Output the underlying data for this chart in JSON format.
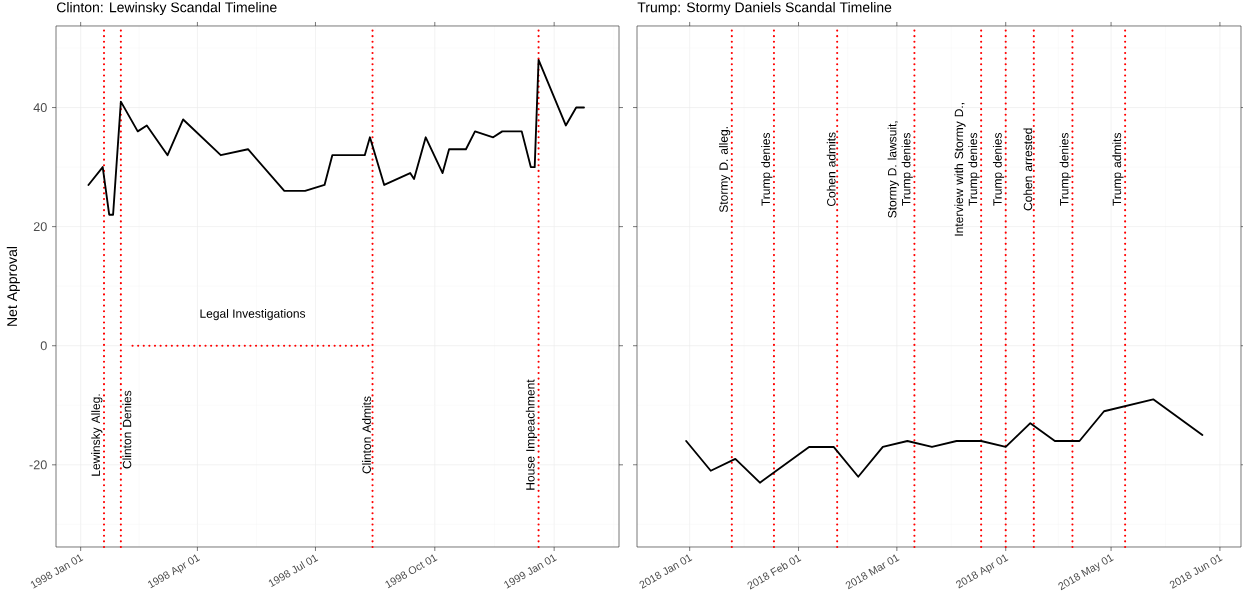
{
  "chart_data": [
    {
      "type": "line",
      "title": "Clinton: Lewinsky Scandal Timeline",
      "ylabel": "Net Approval",
      "xlim": [
        "1997-12-13",
        "1999-02-20"
      ],
      "ylim": [
        -33.8,
        53.7
      ],
      "xticks": [
        {
          "value": "1998-01-01",
          "label": "1998 Jan 01"
        },
        {
          "value": "1998-04-01",
          "label": "1998 Apr 01"
        },
        {
          "value": "1998-07-01",
          "label": "1998 Jul 01"
        },
        {
          "value": "1998-10-01",
          "label": "1998 Oct 01"
        },
        {
          "value": "1999-01-01",
          "label": "1999 Jan 01"
        }
      ],
      "yticks": [
        -20,
        0,
        20,
        40
      ],
      "grid": true,
      "series": [
        {
          "color": "#000000",
          "line_style": "solid",
          "x": [
            "1998-01-07",
            "1998-01-18",
            "1998-01-23",
            "1998-01-26",
            "1998-02-01",
            "1998-02-14",
            "1998-02-21",
            "1998-03-09",
            "1998-03-21",
            "1998-04-19",
            "1998-05-10",
            "1998-06-07",
            "1998-06-23",
            "1998-07-08",
            "1998-07-14",
            "1998-08-08",
            "1998-08-12",
            "1998-08-23",
            "1998-09-12",
            "1998-09-15",
            "1998-09-24",
            "1998-10-07",
            "1998-10-12",
            "1998-10-25",
            "1998-11-01",
            "1998-11-15",
            "1998-11-22",
            "1998-12-07",
            "1998-12-14",
            "1998-12-17",
            "1998-12-20",
            "1999-01-10",
            "1999-01-18",
            "1999-01-24"
          ],
          "values": [
            27,
            30,
            22,
            22,
            41,
            36,
            37,
            32,
            38,
            32,
            33,
            26,
            26,
            27,
            32,
            32,
            35,
            27,
            29,
            28,
            35,
            29,
            33,
            33,
            36,
            35,
            36,
            36,
            30,
            30,
            48,
            37,
            40,
            40
          ]
        },
        {
          "color": "#ff0000",
          "line_style": "dotted",
          "x": [
            "1998-02-10",
            "1998-08-14"
          ],
          "values": [
            0,
            0
          ]
        }
      ],
      "ref_lines": [
        {
          "axis": "x",
          "value": "1998-01-19",
          "label": "Lewinsky Alleg.",
          "color": "#ff0000",
          "line_style": "dotted"
        },
        {
          "axis": "x",
          "value": "1998-02-01",
          "label": "Clinton Denies",
          "color": "#ff0000",
          "line_style": "dotted"
        },
        {
          "axis": "x",
          "value": "1998-08-14",
          "label": "Clinton Admits",
          "color": "#ff0000",
          "line_style": "dotted"
        },
        {
          "axis": "x",
          "value": "1998-12-20",
          "label": "House Impeachment",
          "color": "#ff0000",
          "line_style": "dotted"
        }
      ],
      "annotations": [
        "Legal Investigations"
      ]
    },
    {
      "type": "line",
      "title": "Trump: Stormy Daniels Scandal Timeline",
      "xlim": [
        "2017-12-17",
        "2018-06-07"
      ],
      "ylim": [
        -33.8,
        53.7
      ],
      "xticks": [
        {
          "value": "2018-01-01",
          "label": "2018 Jan 01"
        },
        {
          "value": "2018-02-01",
          "label": "2018 Feb 01"
        },
        {
          "value": "2018-03-01",
          "label": "2018 Mar 01"
        },
        {
          "value": "2018-04-01",
          "label": "2018 Apr 01"
        },
        {
          "value": "2018-05-01",
          "label": "2018 May 01"
        },
        {
          "value": "2018-06-01",
          "label": "2018 Jun 01"
        }
      ],
      "yticks": [
        -20,
        0,
        20,
        40
      ],
      "grid": true,
      "tick_labels": "x",
      "series": [
        {
          "color": "#000000",
          "line_style": "solid",
          "x": [
            "2017-12-31",
            "2018-01-07",
            "2018-01-14",
            "2018-01-21",
            "2018-02-04",
            "2018-02-11",
            "2018-02-18",
            "2018-02-25",
            "2018-03-04",
            "2018-03-11",
            "2018-03-18",
            "2018-03-25",
            "2018-04-01",
            "2018-04-08",
            "2018-04-15",
            "2018-04-22",
            "2018-04-29",
            "2018-05-13",
            "2018-05-27"
          ],
          "values": [
            -16,
            -21,
            -19,
            -23,
            -17,
            -17,
            -22,
            -17,
            -16,
            -17,
            -16,
            -16,
            -17,
            -13,
            -16,
            -16,
            -11,
            -9,
            -15
          ]
        }
      ],
      "ref_lines": [
        {
          "axis": "x",
          "value": "2018-01-13",
          "label": "Stormy D. alleg.",
          "color": "#ff0000",
          "line_style": "dotted"
        },
        {
          "axis": "x",
          "value": "2018-01-25",
          "label": "Trump denies",
          "color": "#ff0000",
          "line_style": "dotted"
        },
        {
          "axis": "x",
          "value": "2018-02-12",
          "label": "Cohen admits",
          "color": "#ff0000",
          "line_style": "dotted"
        },
        {
          "axis": "x",
          "value": "2018-03-06",
          "label": "Stormy D. lawsuit,\nTrump denies",
          "color": "#ff0000",
          "line_style": "dotted"
        },
        {
          "axis": "x",
          "value": "2018-03-25",
          "label": "Interview with Stormy D.,\nTrump denies",
          "color": "#ff0000",
          "line_style": "dotted"
        },
        {
          "axis": "x",
          "value": "2018-04-01",
          "label": "Trump denies",
          "color": "#ff0000",
          "line_style": "dotted"
        },
        {
          "axis": "x",
          "value": "2018-04-09",
          "label": "Cohen arrested",
          "color": "#ff0000",
          "line_style": "dotted"
        },
        {
          "axis": "x",
          "value": "2018-04-20",
          "label": "Trump denies",
          "color": "#ff0000",
          "line_style": "dotted"
        },
        {
          "axis": "x",
          "value": "2018-05-05",
          "label": "Trump admits",
          "color": "#ff0000",
          "line_style": "dotted"
        }
      ]
    }
  ]
}
